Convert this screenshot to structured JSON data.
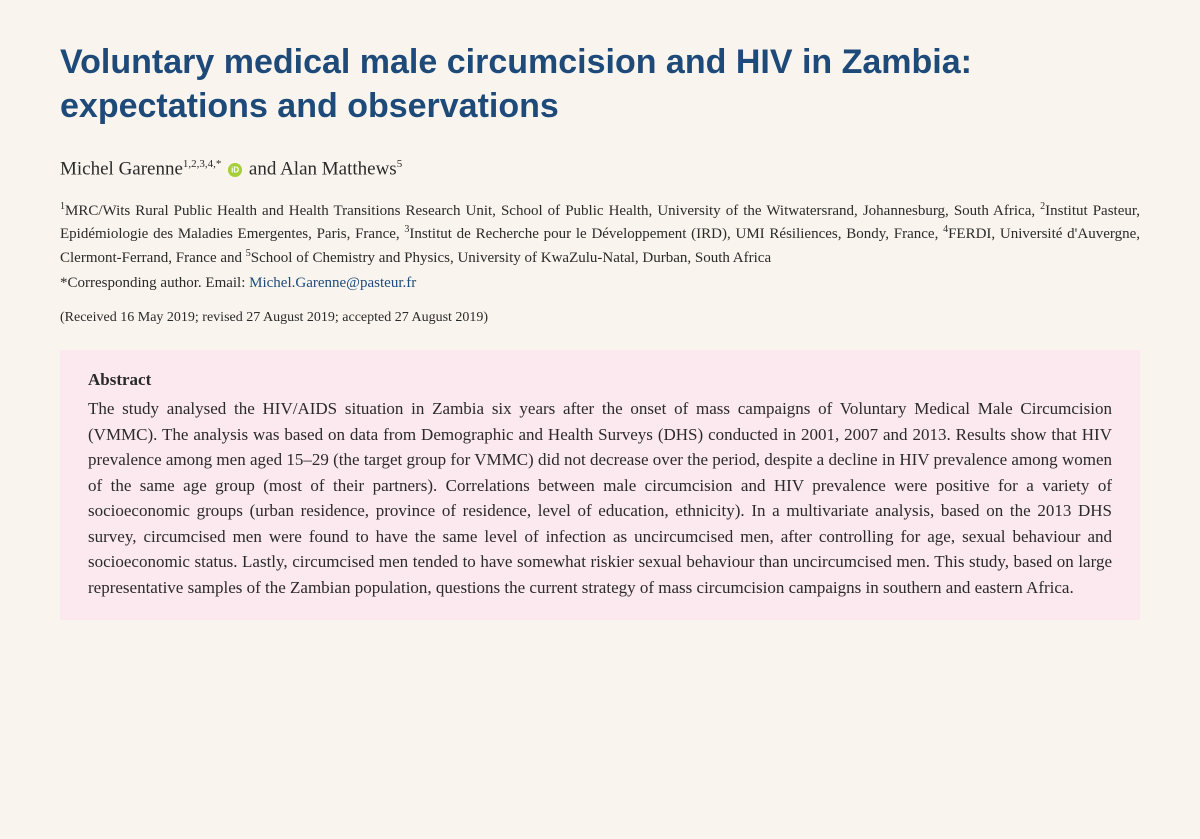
{
  "title": "Voluntary medical male circumcision and HIV in Zambia: expectations and observations",
  "authors": {
    "author1_name": "Michel Garenne",
    "author1_affils": "1,2,3,4,",
    "author1_corr": "*",
    "connector": " and ",
    "author2_name": "Alan Matthews",
    "author2_affils": "5"
  },
  "affiliations": {
    "a1_num": "1",
    "a1_text": "MRC/Wits Rural Public Health and Health Transitions Research Unit, School of Public Health, University of the Witwatersrand, Johannesburg, South Africa, ",
    "a2_num": "2",
    "a2_text": "Institut Pasteur, Epidémiologie des Maladies Emergentes, Paris, France, ",
    "a3_num": "3",
    "a3_text": "Institut de Recherche pour le Développement (IRD), UMI Résiliences, Bondy, France, ",
    "a4_num": "4",
    "a4_text": "FERDI, Université d'Auvergne, Clermont-Ferrand, France and ",
    "a5_num": "5",
    "a5_text": "School of Chemistry and Physics, University of KwaZulu-Natal, Durban, South Africa"
  },
  "corresponding": {
    "label": "*Corresponding author. Email: ",
    "email": "Michel.Garenne@pasteur.fr"
  },
  "dates": "(Received 16 May 2019; revised 27 August 2019; accepted 27 August 2019)",
  "abstract": {
    "heading": "Abstract",
    "text": "The study analysed the HIV/AIDS situation in Zambia six years after the onset of mass campaigns of Voluntary Medical Male Circumcision (VMMC). The analysis was based on data from Demographic and Health Surveys (DHS) conducted in 2001, 2007 and 2013. Results show that HIV prevalence among men aged 15–29 (the target group for VMMC) did not decrease over the period, despite a decline in HIV prevalence among women of the same age group (most of their partners). Correlations between male circumcision and HIV prevalence were positive for a variety of socioeconomic groups (urban residence, province of residence, level of education, ethnicity). In a multivariate analysis, based on the 2013 DHS survey, circumcised men were found to have the same level of infection as uncircumcised men, after controlling for age, sexual behaviour and socioeconomic status. Lastly, circumcised men tended to have somewhat riskier sexual behaviour than uncircumcised men. This study, based on large representative samples of the Zambian population, questions the current strategy of mass circumcision campaigns in southern and eastern Africa."
  },
  "colors": {
    "title_color": "#1e4a7a",
    "background": "#f9f5ee",
    "abstract_bg": "#fbe9ef",
    "orcid_green": "#a6ce39"
  }
}
